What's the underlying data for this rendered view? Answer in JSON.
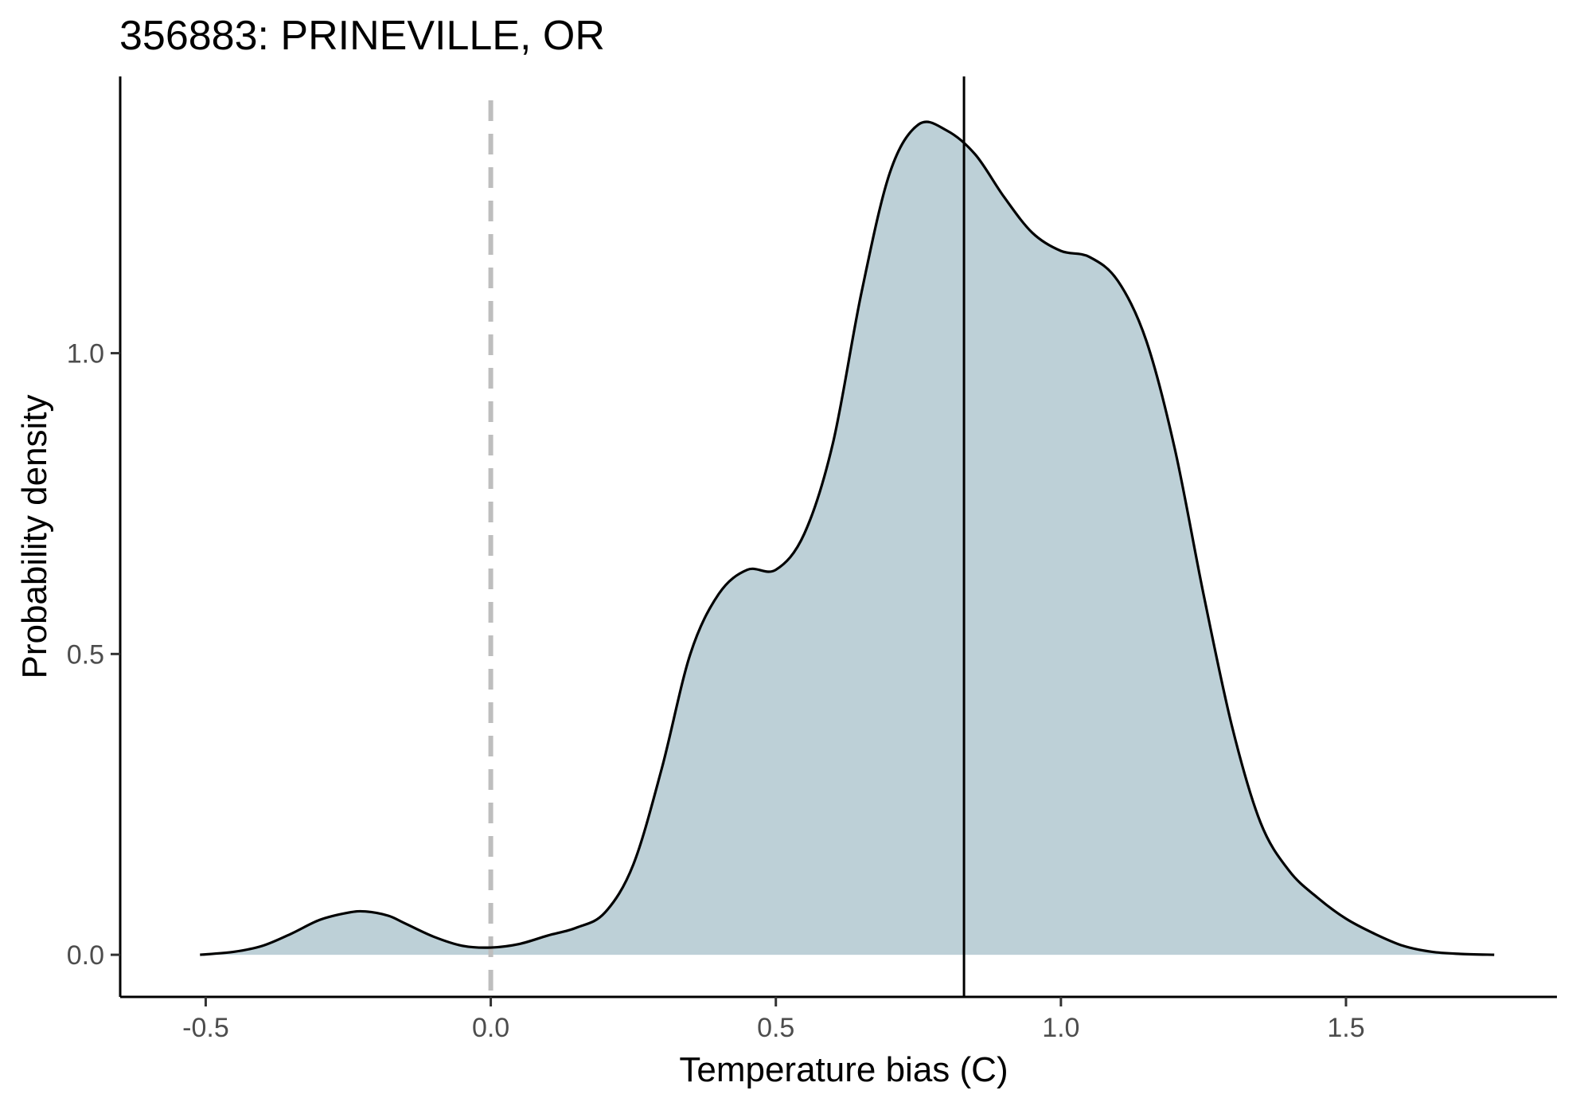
{
  "chart_data": {
    "type": "area",
    "title": "356883: PRINEVILLE, OR",
    "xlabel": "Temperature bias (C)",
    "ylabel": "Probability density",
    "xlim": [
      -0.65,
      1.87
    ],
    "ylim": [
      -0.07,
      1.46
    ],
    "x_ticks": [
      -0.5,
      0.0,
      0.5,
      1.0,
      1.5
    ],
    "x_tick_labels": [
      "-0.5",
      "0.0",
      "0.5",
      "1.0",
      "1.5"
    ],
    "y_ticks": [
      0.0,
      0.5,
      1.0
    ],
    "y_tick_labels": [
      "0.0",
      "0.5",
      "1.0"
    ],
    "grid": false,
    "legend": "none",
    "fill_color": "#bdd0d7",
    "line_color": "#000000",
    "reference_line_zero": {
      "x": 0.0,
      "style": "dashed",
      "color": "#bebebe"
    },
    "reference_line_mean": {
      "x": 0.83,
      "style": "solid",
      "color": "#000000"
    },
    "x": [
      -0.51,
      -0.45,
      -0.4,
      -0.35,
      -0.3,
      -0.25,
      -0.22,
      -0.18,
      -0.15,
      -0.1,
      -0.05,
      0.0,
      0.05,
      0.1,
      0.15,
      0.2,
      0.25,
      0.3,
      0.35,
      0.4,
      0.45,
      0.5,
      0.55,
      0.6,
      0.65,
      0.7,
      0.75,
      0.8,
      0.85,
      0.9,
      0.95,
      1.0,
      1.05,
      1.1,
      1.15,
      1.2,
      1.25,
      1.3,
      1.35,
      1.4,
      1.45,
      1.5,
      1.55,
      1.6,
      1.65,
      1.7,
      1.76
    ],
    "y": [
      0.0,
      0.005,
      0.015,
      0.035,
      0.058,
      0.07,
      0.072,
      0.065,
      0.052,
      0.03,
      0.015,
      0.012,
      0.018,
      0.032,
      0.045,
      0.07,
      0.15,
      0.31,
      0.5,
      0.6,
      0.64,
      0.64,
      0.7,
      0.85,
      1.1,
      1.3,
      1.38,
      1.37,
      1.33,
      1.26,
      1.2,
      1.17,
      1.16,
      1.12,
      1.02,
      0.84,
      0.6,
      0.38,
      0.22,
      0.14,
      0.095,
      0.06,
      0.035,
      0.015,
      0.005,
      0.0015,
      0.0
    ]
  }
}
